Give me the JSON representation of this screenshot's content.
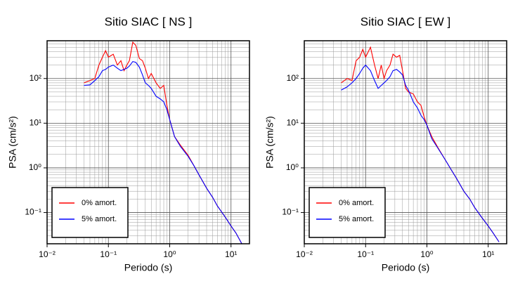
{
  "chart_data": [
    {
      "type": "line",
      "title": "Sitio SIAC [ NS ]",
      "xlabel": "Periodo (s)",
      "ylabel": "PSA (cm/s²)",
      "xscale": "log",
      "yscale": "log",
      "grid": true,
      "legend": "lower left",
      "xlim": [
        0.01,
        20
      ],
      "ylim": [
        0.02,
        700
      ],
      "xticks": [
        {
          "value": 0.01,
          "label": "10⁻²"
        },
        {
          "value": 0.1,
          "label": "10⁻¹"
        },
        {
          "value": 1,
          "label": "10⁰"
        },
        {
          "value": 10,
          "label": "10¹"
        }
      ],
      "yticks": [
        {
          "value": 0.1,
          "label": "10⁻¹"
        },
        {
          "value": 1,
          "label": "10⁰"
        },
        {
          "value": 10,
          "label": "10¹"
        },
        {
          "value": 100,
          "label": "10²"
        }
      ],
      "xminorticks": [
        0.02,
        0.03,
        0.04,
        0.05,
        0.06,
        0.07,
        0.08,
        0.09,
        0.2,
        0.3,
        0.4,
        0.5,
        0.6,
        0.7,
        0.8,
        0.9,
        2,
        3,
        4,
        5,
        6,
        7,
        8,
        9
      ],
      "yminorticks": [
        0.03,
        0.04,
        0.05,
        0.06,
        0.07,
        0.08,
        0.09,
        0.2,
        0.3,
        0.4,
        0.5,
        0.6,
        0.7,
        0.8,
        0.9,
        2,
        3,
        4,
        5,
        6,
        7,
        8,
        9,
        20,
        30,
        40,
        50,
        60,
        70,
        80,
        90,
        200,
        300,
        400,
        500,
        600
      ],
      "x": [
        0.04,
        0.05,
        0.06,
        0.07,
        0.08,
        0.09,
        0.1,
        0.12,
        0.14,
        0.16,
        0.18,
        0.2,
        0.22,
        0.25,
        0.28,
        0.32,
        0.36,
        0.4,
        0.45,
        0.5,
        0.6,
        0.7,
        0.8,
        0.9,
        1.0,
        1.2,
        1.5,
        2,
        2.5,
        3,
        4,
        5,
        6,
        8,
        10,
        12,
        15
      ],
      "series": [
        {
          "name": "0% amort.",
          "color": "#ff0000",
          "values": [
            80,
            90,
            100,
            200,
            300,
            420,
            300,
            350,
            200,
            250,
            150,
            200,
            250,
            650,
            550,
            280,
            250,
            170,
            100,
            130,
            80,
            60,
            70,
            25,
            12,
            5,
            3.2,
            1.9,
            1.1,
            0.7,
            0.35,
            0.22,
            0.14,
            0.08,
            0.05,
            0.035,
            0.02
          ]
        },
        {
          "name": "5% amort.",
          "color": "#0000ff",
          "values": [
            70,
            72,
            90,
            110,
            150,
            160,
            180,
            200,
            170,
            150,
            160,
            170,
            190,
            240,
            230,
            180,
            120,
            80,
            70,
            60,
            40,
            35,
            30,
            20,
            12,
            5,
            3,
            1.8,
            1.1,
            0.7,
            0.35,
            0.22,
            0.14,
            0.08,
            0.05,
            0.035,
            0.02
          ]
        }
      ]
    },
    {
      "type": "line",
      "title": "Sitio SIAC [ EW ]",
      "xlabel": "Periodo (s)",
      "ylabel": "PSA (cm/s²)",
      "xscale": "log",
      "yscale": "log",
      "grid": true,
      "legend": "lower left",
      "xlim": [
        0.01,
        20
      ],
      "ylim": [
        0.02,
        700
      ],
      "xticks": [
        {
          "value": 0.01,
          "label": "10⁻²"
        },
        {
          "value": 0.1,
          "label": "10⁻¹"
        },
        {
          "value": 1,
          "label": "10⁰"
        },
        {
          "value": 10,
          "label": "10¹"
        }
      ],
      "yticks": [
        {
          "value": 0.1,
          "label": "10⁻¹"
        },
        {
          "value": 1,
          "label": "10⁰"
        },
        {
          "value": 10,
          "label": "10¹"
        },
        {
          "value": 100,
          "label": "10²"
        }
      ],
      "xminorticks": [
        0.02,
        0.03,
        0.04,
        0.05,
        0.06,
        0.07,
        0.08,
        0.09,
        0.2,
        0.3,
        0.4,
        0.5,
        0.6,
        0.7,
        0.8,
        0.9,
        2,
        3,
        4,
        5,
        6,
        7,
        8,
        9
      ],
      "yminorticks": [
        0.03,
        0.04,
        0.05,
        0.06,
        0.07,
        0.08,
        0.09,
        0.2,
        0.3,
        0.4,
        0.5,
        0.6,
        0.7,
        0.8,
        0.9,
        2,
        3,
        4,
        5,
        6,
        7,
        8,
        9,
        20,
        30,
        40,
        50,
        60,
        70,
        80,
        90,
        200,
        300,
        400,
        500,
        600
      ],
      "x": [
        0.04,
        0.05,
        0.06,
        0.07,
        0.08,
        0.09,
        0.1,
        0.12,
        0.14,
        0.16,
        0.18,
        0.2,
        0.22,
        0.25,
        0.28,
        0.32,
        0.36,
        0.4,
        0.45,
        0.5,
        0.6,
        0.7,
        0.8,
        0.9,
        1.0,
        1.2,
        1.5,
        2,
        2.5,
        3,
        4,
        5,
        6,
        8,
        10,
        12,
        15
      ],
      "series": [
        {
          "name": "0% amort.",
          "color": "#ff0000",
          "values": [
            80,
            100,
            90,
            250,
            300,
            450,
            300,
            500,
            200,
            100,
            200,
            100,
            150,
            200,
            350,
            300,
            330,
            150,
            60,
            50,
            45,
            30,
            25,
            14,
            9,
            5,
            2.9,
            1.5,
            0.9,
            0.6,
            0.3,
            0.2,
            0.13,
            0.075,
            0.05,
            0.035,
            0.022
          ]
        },
        {
          "name": "5% amort.",
          "color": "#0000ff",
          "values": [
            55,
            65,
            80,
            100,
            130,
            170,
            200,
            150,
            90,
            60,
            70,
            80,
            90,
            110,
            150,
            160,
            140,
            120,
            70,
            55,
            30,
            22,
            15,
            12,
            9,
            4.5,
            2.8,
            1.5,
            0.9,
            0.6,
            0.3,
            0.2,
            0.13,
            0.075,
            0.05,
            0.035,
            0.022
          ]
        }
      ]
    }
  ]
}
